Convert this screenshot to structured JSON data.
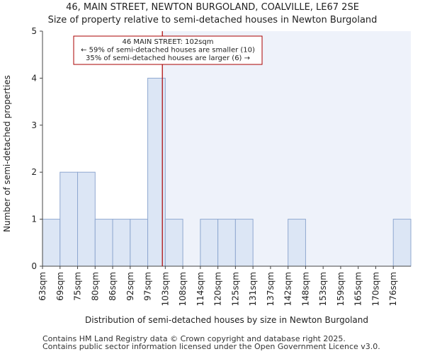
{
  "title_line1": "46, MAIN STREET, NEWTON BURGOLAND, COALVILLE, LE67 2SE",
  "title_line2": "Size of property relative to semi-detached houses in Newton Burgoland",
  "footer_line1": "Contains HM Land Registry data © Crown copyright and database right 2025.",
  "footer_line2": "Contains public sector information licensed under the Open Government Licence v3.0.",
  "chart_data": {
    "type": "bar",
    "categories": [
      "63sqm",
      "69sqm",
      "75sqm",
      "80sqm",
      "86sqm",
      "92sqm",
      "97sqm",
      "103sqm",
      "108sqm",
      "114sqm",
      "120sqm",
      "125sqm",
      "131sqm",
      "137sqm",
      "142sqm",
      "148sqm",
      "153sqm",
      "159sqm",
      "165sqm",
      "170sqm",
      "176sqm"
    ],
    "values": [
      1,
      2,
      2,
      1,
      1,
      1,
      4,
      1,
      0,
      1,
      1,
      1,
      0,
      0,
      1,
      0,
      0,
      0,
      0,
      0,
      1
    ],
    "xlabel": "Distribution of semi-detached houses by size in Newton Burgoland",
    "ylabel": "Number of semi-detached properties",
    "ylim": [
      0,
      5
    ],
    "yticks": [
      0,
      1,
      2,
      3,
      4,
      5
    ],
    "grid": false,
    "property_marker": {
      "value_sqm": 102,
      "color": "#aa0000",
      "annotation": [
        "46 MAIN STREET: 102sqm",
        "← 59% of semi-detached houses are smaller (10)",
        "35% of semi-detached houses are larger (6) →"
      ]
    },
    "colors": {
      "bar_fill": "#dce6f5",
      "bar_stroke": "#8fa8d0",
      "highlight_region": "#eef2fa"
    }
  }
}
